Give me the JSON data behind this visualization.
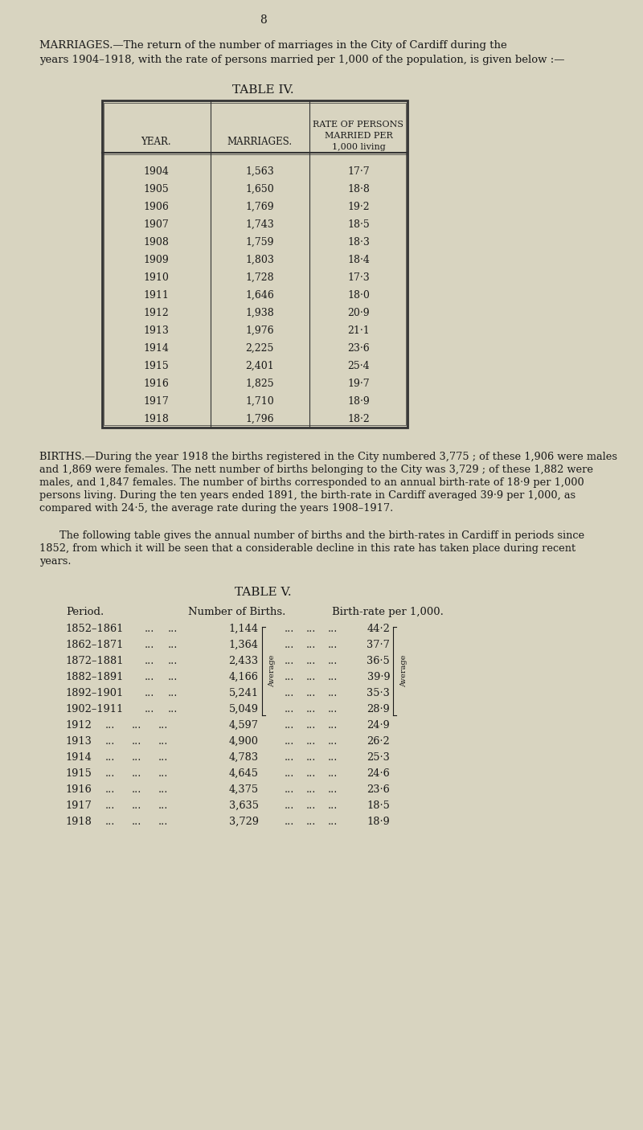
{
  "bg_color": "#d8d4c0",
  "text_color": "#1a1a1a",
  "page_number": "8",
  "marriages_intro": "MARRIAGES.—The return of the number of marriages in the City of Cardiff during the years 1904–1918, with the rate of persons married per 1,000 of the population, is given below :—",
  "table4_title": "TABLE IV.",
  "table4_col_headers": [
    "YEAR.",
    "MARRIAGES.",
    "RATE OF PERSONS\nMARRIED PER\n1,000 living"
  ],
  "table4_data": [
    [
      "1904",
      "1,563",
      "17·7"
    ],
    [
      "1905",
      "1,650",
      "18·8"
    ],
    [
      "1906",
      "1,769",
      "19·2"
    ],
    [
      "1907",
      "1,743",
      "18·5"
    ],
    [
      "1908",
      "1,759",
      "18·3"
    ],
    [
      "1909",
      "1,803",
      "18·4"
    ],
    [
      "1910",
      "1,728",
      "17·3"
    ],
    [
      "1911",
      "1,646",
      "18·0"
    ],
    [
      "1912",
      "1,938",
      "20·9"
    ],
    [
      "1913",
      "1,976",
      "21·1"
    ],
    [
      "1914",
      "2,225",
      "23·6"
    ],
    [
      "1915",
      "2,401",
      "25·4"
    ],
    [
      "1916",
      "1,825",
      "19·7"
    ],
    [
      "1917",
      "1,710",
      "18·9"
    ],
    [
      "1918",
      "1,796",
      "18·2"
    ]
  ],
  "births_para1": "BIRTHS.—During the year 1918 the births registered in the City numbered 3,775 ; of these 1,906 were males and 1,869 were females. The nett number of births belonging to the City was 3,729 ; of these 1,882 were males, and 1,847 females. The number of births corresponded to an annual birth-rate of 18·9 per 1,000 persons living. During the ten years ended 1891, the birth-rate in Cardiff averaged 39·9 per 1,000, as compared with 24·5, the average rate during the years 1908–1917.",
  "births_para2": "The following table gives the annual number of births and the birth-rates in Cardiff in periods since 1852, from which it will be seen that a considerable decline in this rate has taken place during recent years.",
  "table5_title": "TABLE V.",
  "table5_col_headers": [
    "Period.",
    "Number of Births.",
    "Birth-rate per 1,000."
  ],
  "table5_data": [
    [
      "1852–1861",
      "...",
      "...",
      "1,144",
      "...",
      "...",
      "...",
      "44·2"
    ],
    [
      "1862–1871",
      "...",
      "...",
      "1,364",
      "...",
      "...",
      "...",
      "37·7"
    ],
    [
      "1872–1881",
      "...",
      "...",
      "2,433",
      "...",
      "...",
      "...",
      "36·5"
    ],
    [
      "1882–1891",
      "...",
      "...",
      "4,166",
      "...",
      "...",
      "...",
      "39·9"
    ],
    [
      "1892–1901",
      "...",
      "...",
      "5,241",
      "...",
      "...",
      "...",
      "35·3"
    ],
    [
      "1902–1911",
      "...",
      "...",
      "5,049",
      "...",
      "...",
      "...",
      "28·9"
    ],
    [
      "1912",
      "...",
      "...",
      "4,597",
      "...",
      "...",
      "...",
      "24·9"
    ],
    [
      "1913",
      "...",
      "...",
      "4,900",
      "...",
      "...",
      "...",
      "26·2"
    ],
    [
      "1914",
      "...",
      "...",
      "4,783",
      "...",
      "...",
      "...",
      "25·3"
    ],
    [
      "1915",
      "...",
      "...",
      "4,645",
      "...",
      "...",
      "...",
      "24·6"
    ],
    [
      "1916",
      "...",
      "...",
      "4,375",
      "...",
      "...",
      "...",
      "23·6"
    ],
    [
      "1917",
      "...",
      "...",
      "3,635",
      "...",
      "...",
      "...",
      "18·5"
    ],
    [
      "1918",
      "...",
      "...",
      "3,729",
      "...",
      "...",
      "...",
      "18·9"
    ]
  ]
}
